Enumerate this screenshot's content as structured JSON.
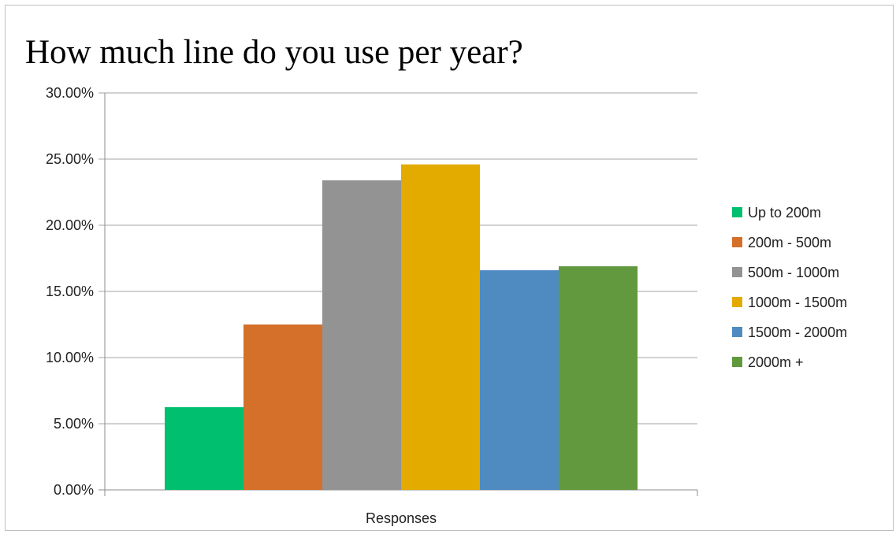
{
  "chart_data": {
    "type": "bar",
    "title": "How much line do you use per year?",
    "xlabel": "",
    "ylabel": "",
    "categories": [
      "Responses"
    ],
    "series": [
      {
        "name": "Up to 200m",
        "values": [
          6.25
        ],
        "color": "#00bf6f"
      },
      {
        "name": "200m - 500m",
        "values": [
          12.5
        ],
        "color": "#d4702a"
      },
      {
        "name": "500m - 1000m",
        "values": [
          23.4
        ],
        "color": "#939393"
      },
      {
        "name": "1000m - 1500m",
        "values": [
          24.6
        ],
        "color": "#e3ab00"
      },
      {
        "name": "1500m - 2000m",
        "values": [
          16.6
        ],
        "color": "#4f8bc0"
      },
      {
        "name": "2000m +",
        "values": [
          16.9
        ],
        "color": "#62993e"
      }
    ],
    "ylim": [
      0,
      30
    ],
    "yticks": [
      0,
      5,
      10,
      15,
      20,
      25,
      30
    ],
    "ytick_labels": [
      "0.00%",
      "5.00%",
      "10.00%",
      "15.00%",
      "20.00%",
      "25.00%",
      "30.00%"
    ],
    "grid": true,
    "legend_position": "right"
  }
}
